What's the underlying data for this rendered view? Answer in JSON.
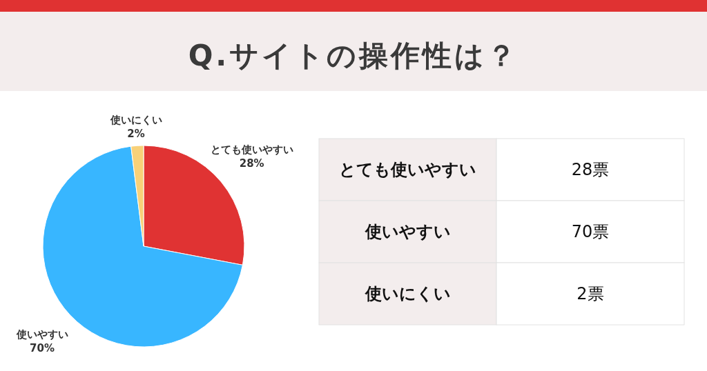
{
  "chart_data": [
    {
      "type": "pie",
      "title": "Q.サイトの操作性は？",
      "categories": [
        "とても使いやすい",
        "使いやすい",
        "使いにくい"
      ],
      "values": [
        28,
        70,
        2
      ],
      "colors": [
        "#e03333",
        "#38b6ff",
        "#f8d179"
      ],
      "value_labels": [
        "28%",
        "70%",
        "2%"
      ]
    },
    {
      "type": "other",
      "categories": [
        "とても使いやすい",
        "使いやすい",
        "使いにくい"
      ],
      "value_labels": [
        "28票",
        "70票",
        "2票"
      ]
    }
  ]
}
